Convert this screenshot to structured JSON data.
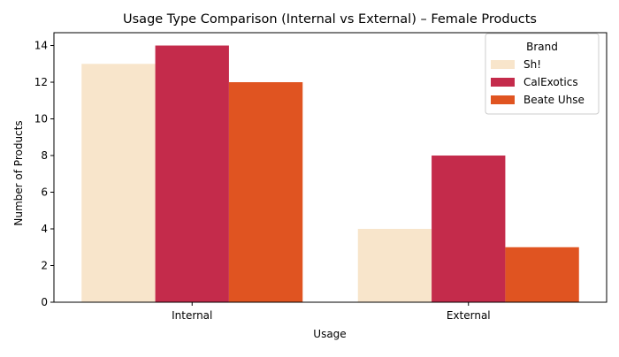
{
  "chart_data": {
    "type": "bar",
    "title": "Usage Type Comparison (Internal vs External) – Female Products",
    "xlabel": "Usage",
    "ylabel": "Number of Products",
    "categories": [
      "Internal",
      "External"
    ],
    "series": [
      {
        "name": "Sh!",
        "values": [
          13,
          4
        ],
        "color": "#f8e5cb"
      },
      {
        "name": "CalExotics",
        "values": [
          14,
          8
        ],
        "color": "#c42b4b"
      },
      {
        "name": "Beate Uhse",
        "values": [
          12,
          3
        ],
        "color": "#e05421"
      }
    ],
    "ylim": [
      0,
      14.7
    ],
    "yticks": [
      0,
      2,
      4,
      6,
      8,
      10,
      12,
      14
    ],
    "grid": false,
    "legend": {
      "title": "Brand",
      "placement": "top-right"
    }
  }
}
